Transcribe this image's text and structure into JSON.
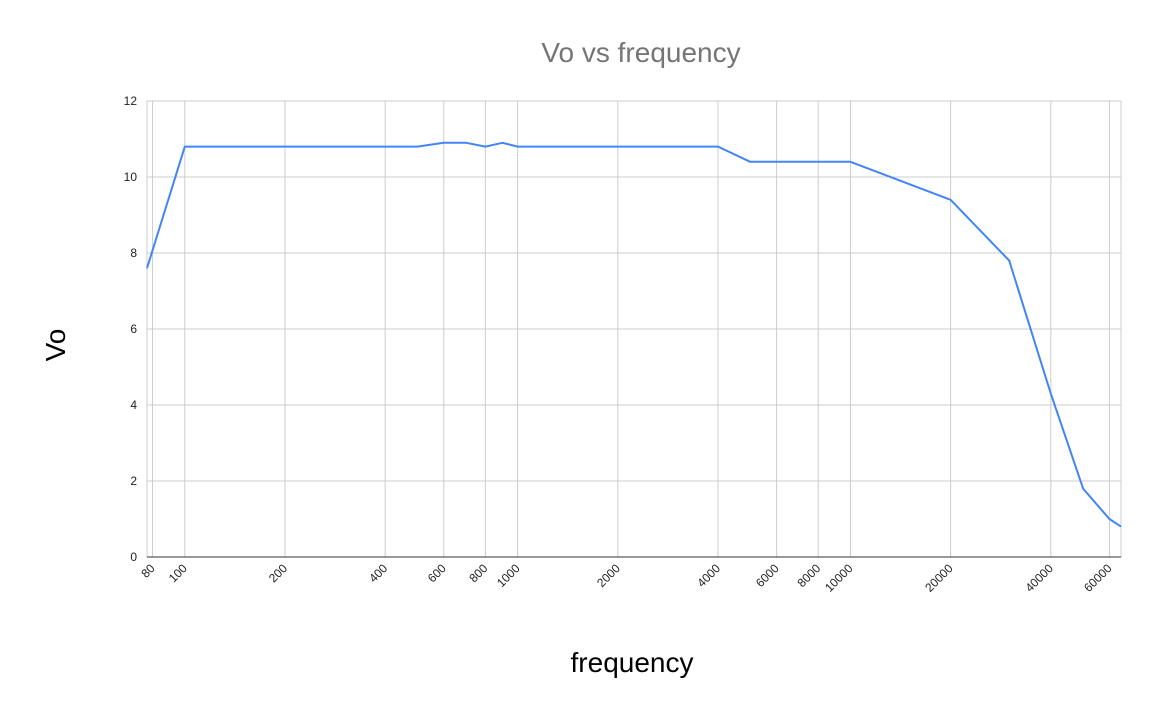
{
  "chart_data": {
    "type": "line",
    "title": "Vo vs frequency",
    "xlabel": "frequency",
    "ylabel": "Vo",
    "x_scale": "log",
    "xlim": [
      77,
      65000
    ],
    "ylim": [
      0,
      12
    ],
    "y_ticks": [
      0,
      2,
      4,
      6,
      8,
      10,
      12
    ],
    "x_ticks": [
      80,
      100,
      200,
      400,
      600,
      800,
      1000,
      2000,
      4000,
      6000,
      8000,
      10000,
      20000,
      40000,
      60000
    ],
    "grid": true,
    "legend": "none",
    "series": [
      {
        "color": "#4285f4",
        "x": [
          77,
          100,
          200,
          300,
          500,
          600,
          700,
          800,
          900,
          1000,
          2000,
          3000,
          4000,
          5000,
          6000,
          7000,
          8000,
          9000,
          10000,
          20000,
          30000,
          40000,
          50000,
          60000,
          65000
        ],
        "y": [
          7.6,
          10.8,
          10.8,
          10.8,
          10.8,
          10.9,
          10.9,
          10.8,
          10.9,
          10.8,
          10.8,
          10.8,
          10.8,
          10.4,
          10.4,
          10.4,
          10.4,
          10.4,
          10.4,
          9.4,
          7.8,
          4.3,
          1.8,
          1.0,
          0.8
        ]
      }
    ]
  }
}
